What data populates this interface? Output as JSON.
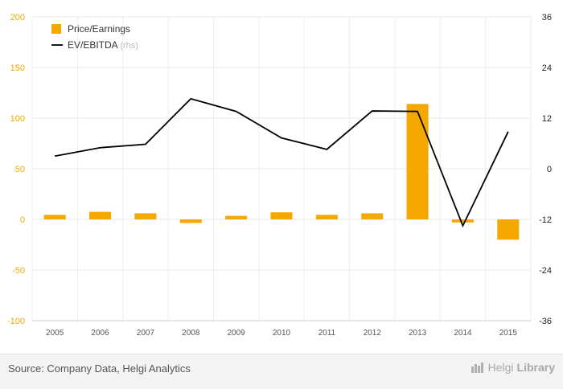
{
  "chart_data": {
    "type": "bar",
    "categories": [
      "2005",
      "2006",
      "2007",
      "2008",
      "2009",
      "2010",
      "2011",
      "2012",
      "2013",
      "2014",
      "2015"
    ],
    "series": [
      {
        "name": "Price/Earnings",
        "type": "bar",
        "axis": "left",
        "color": "#f5a800",
        "values": [
          4.5,
          7.5,
          6,
          -3.5,
          3.5,
          7,
          4.5,
          6,
          114,
          -3,
          -20
        ]
      },
      {
        "name": "EV/EBITDA",
        "name_suffix": "(rhs)",
        "type": "line",
        "axis": "right",
        "color": "#000000",
        "values": [
          3,
          5,
          5.8,
          16.6,
          13.6,
          7.3,
          4.6,
          13.7,
          13.6,
          -13.5,
          8.8
        ]
      }
    ],
    "y_left": {
      "ticks": [
        "200",
        "150",
        "100",
        "50",
        "0",
        "-50",
        "-100"
      ],
      "range": [
        -100,
        200
      ]
    },
    "y_right": {
      "ticks": [
        "36",
        "24",
        "12",
        "0",
        "-12",
        "-24",
        "-36"
      ],
      "range": [
        -36,
        36
      ]
    },
    "grid": true,
    "legend": "top-left"
  },
  "source": "Source: Company Data, Helgi Analytics",
  "brand": {
    "name_a": "Helgi",
    "name_b": "Library"
  },
  "colors": {
    "accent": "#f5a800",
    "line": "#000000",
    "background": "#f3f3f3"
  }
}
